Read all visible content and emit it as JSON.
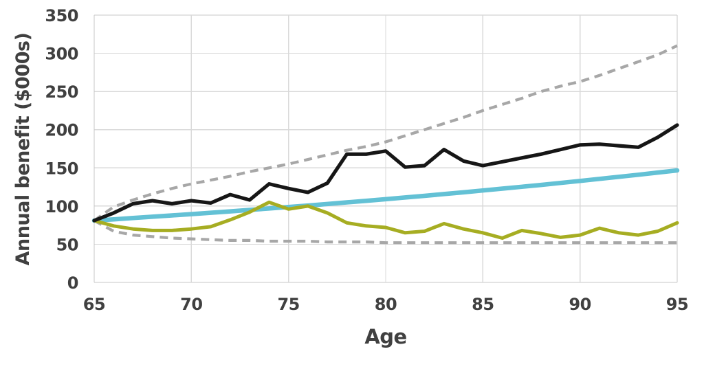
{
  "chart_data": {
    "type": "line",
    "title": "",
    "xlabel": "Age",
    "ylabel": "Annual benefit ($000s)",
    "xlim": [
      65,
      95
    ],
    "ylim": [
      0,
      350
    ],
    "xticks": [
      65,
      70,
      75,
      80,
      85,
      90,
      95
    ],
    "yticks": [
      0,
      50,
      100,
      150,
      200,
      250,
      300,
      350
    ],
    "grid": true,
    "legend_position": "none",
    "x": [
      65,
      66,
      67,
      68,
      69,
      70,
      71,
      72,
      73,
      74,
      75,
      76,
      77,
      78,
      79,
      80,
      81,
      82,
      83,
      84,
      85,
      86,
      87,
      88,
      89,
      90,
      91,
      92,
      93,
      94,
      95
    ],
    "series": [
      {
        "name": "lower-dashed-bound",
        "style": "dashed",
        "color": "#a7a7a7",
        "width": 4.2,
        "values": [
          81,
          67,
          62,
          60,
          58,
          57,
          56,
          55,
          55,
          54,
          54,
          54,
          53,
          53,
          53,
          52,
          52,
          52,
          52,
          52,
          52,
          52,
          52,
          52,
          52,
          52,
          52,
          52,
          52,
          52,
          52
        ]
      },
      {
        "name": "upper-dashed-bound",
        "style": "dashed",
        "color": "#a7a7a7",
        "width": 4.2,
        "values": [
          81,
          99,
          108,
          116,
          123,
          129,
          134,
          139,
          145,
          150,
          155,
          161,
          167,
          173,
          178,
          184,
          192,
          200,
          208,
          216,
          225,
          233,
          241,
          250,
          257,
          263,
          271,
          280,
          289,
          298,
          310
        ]
      },
      {
        "name": "teal-smooth-line",
        "style": "solid",
        "color": "#63c1d5",
        "width": 6.5,
        "values": [
          81,
          82.6,
          84.3,
          86,
          87.7,
          89.4,
          91.2,
          93,
          94.9,
          96.8,
          98.7,
          100.7,
          102.7,
          104.8,
          106.9,
          109,
          111.2,
          113.4,
          115.7,
          118,
          120.4,
          122.8,
          125.2,
          127.7,
          130.3,
          132.9,
          135.6,
          138.3,
          141,
          143.9,
          146.7
        ]
      },
      {
        "name": "olive-jagged-line",
        "style": "solid",
        "color": "#a6ad22",
        "width": 5,
        "values": [
          81,
          74,
          70,
          68,
          68,
          70,
          73,
          82,
          92,
          105,
          96,
          100,
          91,
          78,
          74,
          72,
          65,
          67,
          77,
          70,
          65,
          58,
          68,
          64,
          59,
          62,
          71,
          65,
          62,
          67,
          78
        ]
      },
      {
        "name": "black-jagged-line",
        "style": "solid",
        "color": "#161616",
        "width": 5.2,
        "values": [
          81,
          91,
          103,
          107,
          103,
          107,
          104,
          115,
          108,
          129,
          123,
          118,
          130,
          168,
          168,
          172,
          151,
          153,
          174,
          159,
          153,
          158,
          163,
          168,
          174,
          180,
          181,
          179,
          177,
          190,
          206
        ]
      }
    ]
  },
  "colors": {
    "background": "#ffffff",
    "gridline": "#d9d9d9",
    "plot_border": "#c7c7c7",
    "text": "#404040"
  }
}
